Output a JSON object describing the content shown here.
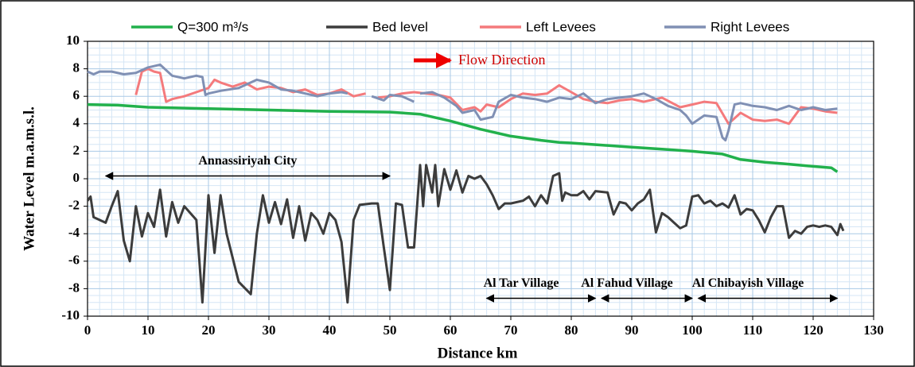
{
  "chart_data": {
    "type": "line",
    "xlabel": "Distance km",
    "ylabel": "Water Level m.a.m.s.l.",
    "xlim": [
      0,
      130
    ],
    "xticks": [
      0,
      10,
      20,
      30,
      40,
      50,
      60,
      70,
      80,
      90,
      100,
      110,
      120,
      130
    ],
    "ylim": [
      -10,
      10
    ],
    "yticks": [
      -10,
      -8,
      -6,
      -4,
      -2,
      0,
      2,
      4,
      6,
      8,
      10
    ],
    "grid": true,
    "legend": "top",
    "flow_label": "Flow Direction",
    "annotations": [
      {
        "text": "Annassiriyah City",
        "x": [
          3,
          50
        ],
        "y": 0.2
      },
      {
        "text": "Al Tar Village",
        "x": [
          66,
          84
        ],
        "y": -8.7
      },
      {
        "text": "Al Fahud Village",
        "x": [
          85,
          100
        ],
        "y": -8.7
      },
      {
        "text": "Al Chibayish Village",
        "x": [
          101,
          124
        ],
        "y": -8.7
      }
    ],
    "series": [
      {
        "name": "Q=300 m³/s",
        "color": "#22b14c",
        "x": [
          0,
          5,
          10,
          20,
          30,
          40,
          50,
          55,
          60,
          65,
          70,
          75,
          78,
          80,
          85,
          90,
          95,
          100,
          105,
          108,
          112,
          115,
          120,
          123,
          124
        ],
        "values": [
          5.4,
          5.35,
          5.2,
          5.1,
          5.0,
          4.9,
          4.85,
          4.7,
          4.2,
          3.6,
          3.1,
          2.8,
          2.65,
          2.6,
          2.45,
          2.3,
          2.15,
          2.0,
          1.8,
          1.4,
          1.2,
          1.1,
          0.9,
          0.8,
          0.5
        ]
      },
      {
        "name": "Bed level",
        "color": "#3c3c3c",
        "x": [
          0,
          0.5,
          1,
          2,
          3,
          4,
          5,
          6,
          7,
          8,
          9,
          10,
          11,
          12,
          13,
          14,
          15,
          16,
          18,
          19,
          20,
          21,
          22,
          23,
          25,
          27,
          28,
          29,
          30,
          31,
          32,
          33,
          34,
          35,
          36,
          37,
          38,
          39,
          40,
          41,
          42,
          43,
          44,
          45,
          47,
          48,
          49,
          50,
          51,
          52,
          53,
          54,
          55,
          55.5,
          56,
          57,
          57.5,
          58,
          59,
          60,
          61,
          62,
          63,
          64,
          65,
          66,
          67,
          68,
          69,
          70,
          72,
          73,
          74,
          75,
          76,
          77,
          78,
          78.5,
          79,
          80,
          81,
          82,
          83,
          84,
          86,
          87,
          88,
          89,
          90,
          91,
          92,
          93,
          94,
          95,
          96,
          97,
          98,
          99,
          100,
          101,
          102,
          103,
          104,
          105,
          106,
          107,
          108,
          109,
          110,
          111,
          112,
          113,
          114,
          115,
          116,
          117,
          118,
          119,
          120,
          121,
          122,
          123,
          124,
          124.5,
          125
        ],
        "values": [
          -1.6,
          -1.3,
          -2.8,
          -3,
          -3.2,
          -2,
          -0.9,
          -4.5,
          -6,
          -2,
          -4.2,
          -2.5,
          -3.5,
          -0.8,
          -4.2,
          -1.7,
          -3.2,
          -2,
          -3,
          -9,
          -1.2,
          -5.4,
          -1.2,
          -4,
          -7.5,
          -8.4,
          -4,
          -1.2,
          -3.2,
          -1.7,
          -3.3,
          -1.5,
          -4.3,
          -2,
          -4.5,
          -2.5,
          -3,
          -4,
          -2.5,
          -3,
          -4.6,
          -9,
          -3,
          -1.9,
          -1.8,
          -1.8,
          -5,
          -8.1,
          -1.8,
          -1.9,
          -5,
          -5,
          1,
          -2,
          1,
          -1,
          1,
          -2,
          0.7,
          -0.8,
          0.6,
          -1,
          0.2,
          0,
          0.2,
          -0.4,
          -1.2,
          -2.2,
          -1.8,
          -1.8,
          -1.6,
          -1.3,
          -2,
          -1.2,
          -1.8,
          0.2,
          0.4,
          -1.6,
          -1,
          -1.2,
          -1.2,
          -0.9,
          -1.5,
          -0.9,
          -1,
          -2.6,
          -1.7,
          -1.8,
          -2.3,
          -1.8,
          -1.5,
          -0.8,
          -3.9,
          -2.5,
          -2.8,
          -3.2,
          -3.6,
          -3.4,
          -1.3,
          -1.2,
          -1.8,
          -1.6,
          -2,
          -1.8,
          -2.1,
          -1.2,
          -2.6,
          -2.2,
          -2.3,
          -3,
          -3.9,
          -2.8,
          -2,
          -2,
          -4.3,
          -3.8,
          -4,
          -3.5,
          -3.4,
          -3.5,
          -3.4,
          -3.5,
          -4.1,
          -3.3,
          -3.8
        ]
      },
      {
        "name": "Left Levees",
        "color": "#f47a7c",
        "x": [
          8,
          9,
          10,
          11,
          12,
          13,
          14,
          16,
          18,
          20,
          21,
          22,
          24,
          26,
          28,
          30,
          32,
          34,
          36,
          38,
          40,
          42,
          44,
          46,
          47,
          48,
          50,
          52,
          54,
          56,
          58,
          60,
          62,
          64,
          65,
          66,
          68,
          70,
          72,
          74,
          76,
          78,
          80,
          82,
          84,
          86,
          88,
          90,
          92,
          95,
          98,
          100,
          102,
          104,
          106,
          108,
          110,
          112,
          114,
          116,
          118,
          120,
          122,
          124
        ],
        "values": [
          6.1,
          7.8,
          8,
          7.8,
          7.7,
          5.6,
          5.8,
          6,
          6.3,
          6.6,
          7.2,
          7,
          6.7,
          7,
          6.5,
          6.7,
          6.6,
          6.3,
          6.5,
          6.1,
          6.2,
          6.5,
          6,
          6.2,
          null,
          5.9,
          6,
          6.2,
          6.3,
          6.2,
          6.1,
          5.9,
          5,
          5.2,
          4.9,
          5.4,
          5.2,
          5.8,
          6.2,
          6.1,
          6.2,
          6.8,
          6.3,
          5.8,
          5.6,
          5.5,
          5.7,
          5.8,
          5.6,
          5.9,
          5.2,
          5.4,
          5.6,
          5.5,
          4,
          4.8,
          4.3,
          4.2,
          4.3,
          4.0,
          5.2,
          5.1,
          4.9,
          4.8
        ]
      },
      {
        "name": "Right Levees",
        "color": "#8090b4",
        "x": [
          0,
          1,
          2,
          4,
          6,
          8,
          10,
          12,
          14,
          16,
          18,
          19,
          19.5,
          20,
          22,
          25,
          28,
          30,
          32,
          34,
          36,
          38,
          40,
          42,
          43,
          44,
          47,
          49,
          50,
          52,
          54,
          54.5,
          55,
          57,
          59,
          61,
          62,
          64,
          65,
          67,
          68,
          70,
          72,
          74,
          76,
          78,
          80,
          82,
          84,
          86,
          88,
          90,
          92,
          94,
          96,
          98,
          99,
          100,
          102,
          104,
          105,
          105.5,
          106,
          107,
          108,
          110,
          112,
          114,
          116,
          118,
          120,
          122,
          124
        ],
        "values": [
          7.8,
          7.6,
          7.8,
          7.8,
          7.6,
          7.7,
          8.1,
          8.3,
          7.5,
          7.3,
          7.5,
          7.4,
          6.1,
          6.2,
          6.4,
          6.6,
          7.2,
          7,
          6.5,
          6.4,
          6.2,
          6,
          6.2,
          6.3,
          6.2,
          null,
          6,
          5.7,
          6.1,
          6,
          5.6,
          null,
          6.2,
          6.3,
          5.9,
          5.3,
          4.8,
          5.0,
          4.3,
          4.5,
          5.6,
          6.1,
          5.9,
          5.8,
          5.6,
          5.9,
          5.8,
          6.2,
          5.5,
          5.8,
          5.9,
          6.0,
          6.2,
          5.8,
          5.3,
          5.0,
          4.6,
          4.0,
          4.6,
          4.5,
          3.0,
          2.8,
          3.5,
          5.4,
          5.5,
          5.3,
          5.2,
          5.0,
          5.3,
          5.0,
          5.2,
          5.0,
          5.1
        ]
      }
    ]
  }
}
